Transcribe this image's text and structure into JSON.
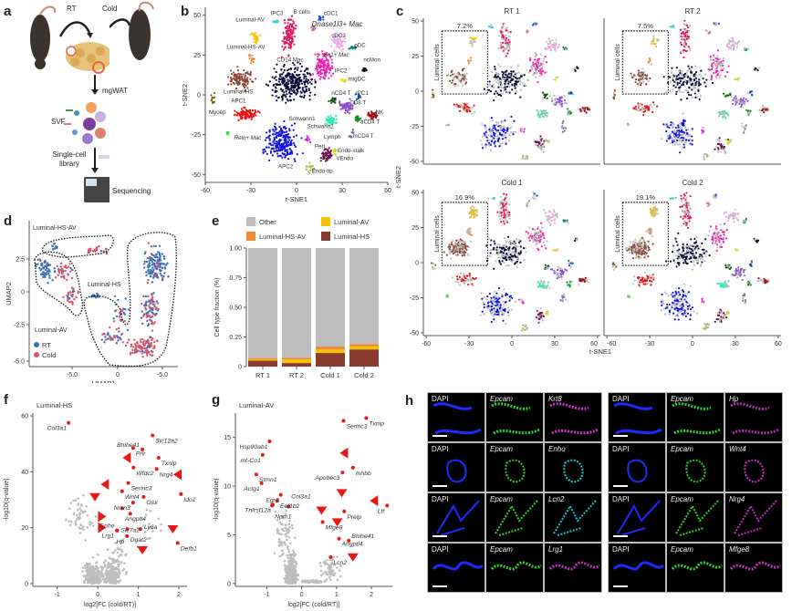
{
  "panels": {
    "a": {
      "letter": "a",
      "labels": {
        "rt": "RT",
        "cold": "Cold",
        "tissue": "mgWAT",
        "svf": "SVF",
        "library": "Single-cell library",
        "sequencing": "Sequencing"
      }
    },
    "b": {
      "letter": "b",
      "xlabel": "t-SNE1",
      "ylabel": "t-SNE2",
      "xticks": [
        "-60",
        "-30",
        "0",
        "30",
        "60"
      ],
      "yticks": [
        "50",
        "25",
        "0",
        "-25",
        "-50"
      ],
      "cluster_labels": [
        "IPC3",
        "B cells",
        "cDC1",
        "Dnase1l3+ Mac",
        "Luminal-AV",
        "cDC2",
        "pDC",
        "Luminal-HS-AV",
        "Fn1+ Mac",
        "ncMon",
        "CD14 Mac",
        "IPC2",
        "migDC",
        "Luminal-HS",
        "nCD4 T",
        "IPC1",
        "APC1",
        "CD8 T",
        "Myoep",
        "NK",
        "Schwann1",
        "Schwann2",
        "aCD4 T",
        "Lymph",
        "mCD4 T",
        "Reln+ Mac",
        "Peri",
        "Endo-stalk",
        "VEndo",
        "APC2",
        "Endo-tip"
      ]
    },
    "c": {
      "letter": "c",
      "xlabel": "t-SNE1",
      "ylabel": "t-SNE2",
      "xticks": [
        "-60",
        "-30",
        "0",
        "30",
        "60"
      ],
      "yticks": [
        "50",
        "25",
        "0",
        "-25",
        "-50"
      ],
      "box_label": "Luminal cells",
      "facets": [
        {
          "title": "RT 1",
          "percent": "7.2%"
        },
        {
          "title": "RT 2",
          "percent": "7.5%"
        },
        {
          "title": "Cold 1",
          "percent": "16.9%"
        },
        {
          "title": "Cold 2",
          "percent": "19.1%"
        }
      ]
    },
    "d": {
      "letter": "d",
      "xlabel": "UMAP1",
      "ylabel": "UMAP2",
      "xticks": [
        "-5.0",
        "0",
        "-5.0"
      ],
      "yticks": [
        "2.5",
        "0",
        "-2.5",
        "-5.0"
      ],
      "region_labels": [
        "Luminal-HS-AV",
        "Luminal-HS",
        "Luminal-AV"
      ],
      "legend": [
        {
          "name": "RT",
          "color": "#3b6fb6"
        },
        {
          "name": "Cold",
          "color": "#d9536b"
        }
      ]
    },
    "f": {
      "letter": "f",
      "title": "Luminal-HS",
      "xlabel": "log2[FC (cold/RT)]",
      "ylabel": "-log10(q-value)",
      "xticks": [
        "-1",
        "0",
        "1",
        "2"
      ],
      "yticks": [
        "0",
        "20",
        "40",
        "60"
      ]
    },
    "g": {
      "letter": "g",
      "title": "Luminal-AV",
      "xlabel": "log2[FC (cold/RT)]",
      "ylabel": "-log10(q-value)",
      "xticks": [
        "-1",
        "0",
        "1",
        "2"
      ],
      "yticks": [
        "0",
        "5",
        "10",
        "15"
      ]
    },
    "h": {
      "letter": "h",
      "grid": [
        [
          {
            "label": "DAPI",
            "color": "#1c2cff"
          },
          {
            "label": "Epcam",
            "color": "#2fd22f"
          },
          {
            "label": "Krt8",
            "color": "#d032d0"
          },
          {
            "label": "DAPI",
            "color": "#1c2cff"
          },
          {
            "label": "Epcam",
            "color": "#2fd22f"
          },
          {
            "label": "Hp",
            "color": "#b030b0"
          }
        ],
        [
          {
            "label": "DAPI",
            "color": "#1c2cff"
          },
          {
            "label": "Epcam",
            "color": "#2fd22f"
          },
          {
            "label": "Enho",
            "color": "#20d0d8"
          },
          {
            "label": "DAPI",
            "color": "#1c2cff"
          },
          {
            "label": "Epcam",
            "color": "#2fd22f"
          },
          {
            "label": "Wnt4",
            "color": "#d032d0"
          }
        ],
        [
          {
            "label": "DAPI",
            "color": "#1c2cff"
          },
          {
            "label": "Epcam",
            "color": "#2fd22f"
          },
          {
            "label": "Lcn2",
            "color": "#20c0c8"
          },
          {
            "label": "DAPI",
            "color": "#1c2cff"
          },
          {
            "label": "Epcam",
            "color": "#2fd22f"
          },
          {
            "label": "Nrg4",
            "color": "#c030c0"
          }
        ],
        [
          {
            "label": "DAPI",
            "color": "#1c2cff"
          },
          {
            "label": "Epcam",
            "color": "#2fd22f"
          },
          {
            "label": "Lrg1",
            "color": "#c030c0"
          },
          {
            "label": "DAPI",
            "color": "#1c2cff"
          },
          {
            "label": "Epcam",
            "color": "#2fd22f"
          },
          {
            "label": "Mfge8",
            "color": "#c030c0"
          }
        ]
      ]
    }
  },
  "chart_data": [
    {
      "id": "e",
      "type": "bar",
      "stacked": true,
      "title": "",
      "xlabel": "",
      "ylabel": "Cell type fraction (%)",
      "ylim": [
        0,
        1.0
      ],
      "yticks": [
        "0",
        "0.25",
        "0.50",
        "0.75",
        "1.00"
      ],
      "categories": [
        "RT 1",
        "RT 2",
        "Cold 1",
        "Cold 2"
      ],
      "legend_position": "top",
      "series": [
        {
          "name": "Luminal-HS",
          "color": "#8b3a2f",
          "values": [
            0.05,
            0.03,
            0.115,
            0.145
          ]
        },
        {
          "name": "Luminal-AV",
          "color": "#f5c400",
          "values": [
            0.012,
            0.03,
            0.03,
            0.025
          ]
        },
        {
          "name": "Luminal-HS-AV",
          "color": "#f08a3a",
          "values": [
            0.01,
            0.015,
            0.024,
            0.021
          ]
        },
        {
          "name": "Other",
          "color": "#bdbdbd",
          "values": [
            0.928,
            0.925,
            0.831,
            0.809
          ]
        }
      ],
      "legend_order": [
        "Other",
        "Luminal-AV",
        "Luminal-HS-AV",
        "Luminal-HS"
      ]
    },
    {
      "id": "f",
      "type": "scatter",
      "title": "Luminal-HS",
      "xlabel": "log2[FC (cold/RT)]",
      "ylabel": "-log10(q-value)",
      "xlim": [
        -1.6,
        2.2
      ],
      "ylim": [
        -1,
        61
      ],
      "highlighted": [
        {
          "gene": "Col3a1",
          "x": -0.72,
          "y": 57.5
        },
        {
          "gene": "Slc12a2",
          "x": 1.35,
          "y": 53
        },
        {
          "gene": "Prlr",
          "x": 0.87,
          "y": 48.5
        },
        {
          "gene": "Bhlhe41",
          "x": 1.1,
          "y": 48
        },
        {
          "gene": "Txnip",
          "x": 1.5,
          "y": 45
        },
        {
          "gene": "Wfdc2",
          "x": 0.88,
          "y": 41.5
        },
        {
          "gene": "Nrg4",
          "x": 1.45,
          "y": 41
        },
        {
          "gene": "Serinc3",
          "x": 0.75,
          "y": 36
        },
        {
          "gene": "Wnt4",
          "x": 0.6,
          "y": 33
        },
        {
          "gene": "Glul",
          "x": 1.13,
          "y": 31
        },
        {
          "gene": "Ido1",
          "x": 2.05,
          "y": 32
        },
        {
          "gene": "Nrxn3",
          "x": 0.87,
          "y": 29
        },
        {
          "gene": "Angptl4",
          "x": 0.6,
          "y": 27
        },
        {
          "gene": "Slc7a2",
          "x": 0.8,
          "y": 25
        },
        {
          "gene": "Lrg1",
          "x": 0.47,
          "y": 19
        },
        {
          "gene": "Dgat2",
          "x": 0.73,
          "y": 19.5
        },
        {
          "gene": "Ly6a",
          "x": 1.05,
          "y": 19.5
        },
        {
          "gene": "Enho",
          "x": 0.48,
          "y": 19
        },
        {
          "gene": "Hp",
          "x": 0.72,
          "y": 17
        },
        {
          "gene": "Defb1",
          "x": 1.97,
          "y": 14.5
        }
      ],
      "triangles": [
        {
          "x": 0.72,
          "y": 45,
          "dir": "left"
        },
        {
          "x": 1.97,
          "y": 39,
          "dir": "left"
        },
        {
          "x": 0.18,
          "y": 35.5,
          "dir": "left"
        },
        {
          "x": -0.07,
          "y": 31,
          "dir": "down"
        },
        {
          "x": 0.1,
          "y": 24,
          "dir": "right"
        },
        {
          "x": 0.1,
          "y": 20,
          "dir": "right"
        },
        {
          "x": 1.85,
          "y": 19.5,
          "dir": "down"
        },
        {
          "x": 1.1,
          "y": 12,
          "dir": "down"
        }
      ]
    },
    {
      "id": "g",
      "type": "scatter",
      "title": "Luminal-AV",
      "xlabel": "log2[FC (cold/RT)]",
      "ylabel": "-log10(q-value)",
      "xlim": [
        -1.9,
        2.6
      ],
      "ylim": [
        -0.3,
        17.5
      ],
      "highlighted": [
        {
          "gene": "Txnip",
          "x": 1.85,
          "y": 17
        },
        {
          "gene": "Serinc3",
          "x": 1.2,
          "y": 16.7
        },
        {
          "gene": "Hsp90ab1",
          "x": -0.92,
          "y": 14.6
        },
        {
          "gene": "mt-Co1",
          "x": -1.12,
          "y": 13.2
        },
        {
          "gene": "Inhbb",
          "x": 1.47,
          "y": 11.9
        },
        {
          "gene": "Apobec3",
          "x": 1.17,
          "y": 11.4
        },
        {
          "gene": "Stmn1",
          "x": -1.3,
          "y": 11.2
        },
        {
          "gene": "Actg1",
          "x": -1.15,
          "y": 10.3
        },
        {
          "gene": "Egr3",
          "x": -0.6,
          "y": 9.1
        },
        {
          "gene": "Eef1b2",
          "x": -0.7,
          "y": 8.5
        },
        {
          "gene": "Tnfrsf12a",
          "x": -0.83,
          "y": 8.1
        },
        {
          "gene": "Npm1",
          "x": -0.85,
          "y": 8.0
        },
        {
          "gene": "Col3a1",
          "x": -0.38,
          "y": 7.9
        },
        {
          "gene": "Ltf",
          "x": 2.45,
          "y": 8.0
        },
        {
          "gene": "Prelp",
          "x": 1.22,
          "y": 7.4
        },
        {
          "gene": "Mfge8",
          "x": 0.6,
          "y": 6.3
        },
        {
          "gene": "Angptl4",
          "x": 1.07,
          "y": 4.6
        },
        {
          "gene": "Bhlhe41",
          "x": 1.35,
          "y": 4.4
        },
        {
          "gene": "Lcn2",
          "x": 0.83,
          "y": 2.7
        }
      ],
      "triangles": [
        {
          "x": 1.22,
          "y": 13.4,
          "dir": "left"
        },
        {
          "x": 1.15,
          "y": 9.3,
          "dir": "down"
        },
        {
          "x": 2.08,
          "y": 8.5,
          "dir": "left"
        },
        {
          "x": 0.57,
          "y": 7.5,
          "dir": "down"
        },
        {
          "x": 1.02,
          "y": 6.3,
          "dir": "down"
        },
        {
          "x": 1.47,
          "y": 2.7,
          "dir": "down"
        }
      ]
    }
  ]
}
